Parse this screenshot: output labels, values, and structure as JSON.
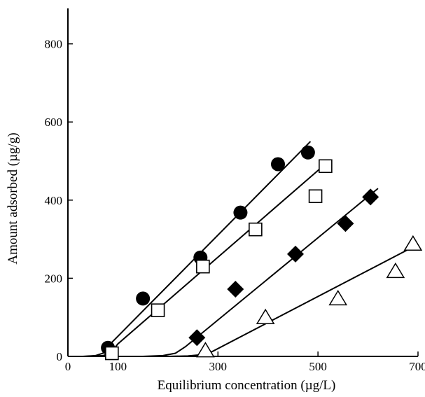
{
  "chart_data": {
    "type": "scatter",
    "title": "",
    "xlabel": "Equilibrium concentration (µg/L)",
    "ylabel": "Amount adsorbed (µg/g)",
    "xlim": [
      0,
      700
    ],
    "ylim": [
      0,
      880
    ],
    "xticks": [
      0,
      100,
      300,
      500,
      700
    ],
    "yticks": [
      0,
      200,
      400,
      600,
      800
    ],
    "grid": false,
    "legend": "none",
    "series": [
      {
        "marker": "filled-circle",
        "points": [
          [
            80,
            22
          ],
          [
            150,
            148
          ],
          [
            265,
            253
          ],
          [
            345,
            368
          ],
          [
            420,
            492
          ],
          [
            480,
            522
          ]
        ],
        "fit": [
          [
            0,
            0
          ],
          [
            30,
            0
          ],
          [
            55,
            2
          ],
          [
            70,
            8
          ],
          [
            85,
            32
          ],
          [
            485,
            550
          ]
        ]
      },
      {
        "marker": "open-square",
        "points": [
          [
            88,
            8
          ],
          [
            180,
            118
          ],
          [
            270,
            230
          ],
          [
            375,
            325
          ],
          [
            495,
            410
          ],
          [
            515,
            487
          ]
        ],
        "fit": [
          [
            0,
            0
          ],
          [
            40,
            0
          ],
          [
            70,
            2
          ],
          [
            85,
            8
          ],
          [
            100,
            32
          ],
          [
            510,
            487
          ]
        ]
      },
      {
        "marker": "filled-diamond",
        "points": [
          [
            258,
            48
          ],
          [
            335,
            172
          ],
          [
            455,
            262
          ],
          [
            555,
            340
          ],
          [
            605,
            408
          ]
        ],
        "fit": [
          [
            0,
            0
          ],
          [
            150,
            0
          ],
          [
            190,
            2
          ],
          [
            215,
            8
          ],
          [
            235,
            25
          ],
          [
            620,
            430
          ]
        ]
      },
      {
        "marker": "open-triangle",
        "points": [
          [
            275,
            15
          ],
          [
            395,
            100
          ],
          [
            540,
            148
          ],
          [
            655,
            218
          ],
          [
            690,
            288
          ]
        ],
        "fit": [
          [
            0,
            0
          ],
          [
            200,
            0
          ],
          [
            240,
            1
          ],
          [
            265,
            4
          ],
          [
            285,
            10
          ],
          [
            690,
            280
          ]
        ]
      }
    ]
  }
}
